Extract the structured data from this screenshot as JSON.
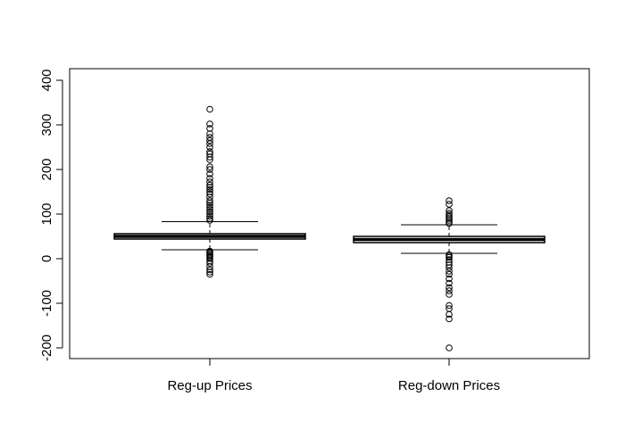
{
  "chart_data": {
    "type": "boxplot",
    "title": "",
    "xlabel": "",
    "ylabel": "",
    "ylim": [
      -220,
      420
    ],
    "yticks": [
      -200,
      -100,
      0,
      100,
      200,
      300,
      400
    ],
    "ytick_labels": [
      "-200",
      "-100",
      "0",
      "100",
      "200",
      "300",
      "400"
    ],
    "grid": false,
    "categories": [
      "Reg-up Prices",
      "Reg-down Prices"
    ],
    "boxes": [
      {
        "label": "Reg-up Prices",
        "whisker_low": 20,
        "q1": 44,
        "median": 50,
        "q3": 56,
        "whisker_high": 83,
        "outliers": [
          -35,
          -30,
          -25,
          -18,
          -10,
          -5,
          0,
          3,
          6,
          9,
          12,
          15,
          17,
          86,
          90,
          95,
          100,
          105,
          110,
          115,
          120,
          125,
          130,
          138,
          145,
          150,
          155,
          160,
          165,
          172,
          180,
          190,
          200,
          206,
          222,
          228,
          235,
          240,
          250,
          258,
          265,
          272,
          280,
          292,
          302,
          335
        ]
      },
      {
        "label": "Reg-down Prices",
        "whisker_low": 12,
        "q1": 36,
        "median": 43,
        "q3": 50,
        "whisker_high": 76,
        "outliers": [
          -200,
          -135,
          -125,
          -112,
          -105,
          -80,
          -72,
          -65,
          -55,
          -45,
          -35,
          -28,
          -20,
          -14,
          -8,
          -2,
          3,
          6,
          9,
          79,
          82,
          86,
          90,
          94,
          98,
          102,
          108,
          122,
          130
        ]
      }
    ]
  }
}
